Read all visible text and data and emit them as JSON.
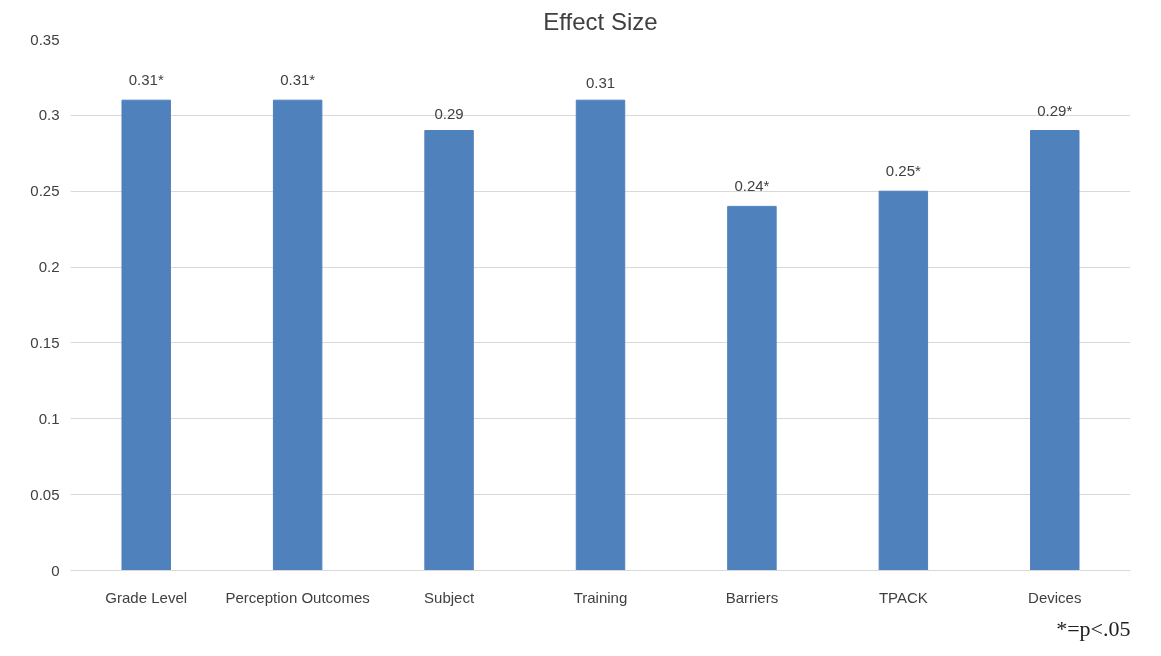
{
  "chart_data": {
    "type": "bar",
    "title": "Effect Size",
    "categories": [
      "Grade Level",
      "Perception Outcomes",
      "Subject",
      "Training",
      "Barriers",
      "TPACK",
      "Devices"
    ],
    "values": [
      0.31,
      0.31,
      0.29,
      0.31,
      0.24,
      0.25,
      0.29
    ],
    "value_labels": [
      "0.31*",
      "0.31*",
      "0.29",
      "0.31",
      "0.24*",
      "0.25*",
      "0.29*"
    ],
    "color": "#4f81bd",
    "ylim": [
      0,
      0.35
    ],
    "yticks": [
      0,
      0.05,
      0.1,
      0.15,
      0.2,
      0.25,
      0.3,
      0.35
    ],
    "grid": "y",
    "annotations": [
      "*=p<.05"
    ]
  }
}
